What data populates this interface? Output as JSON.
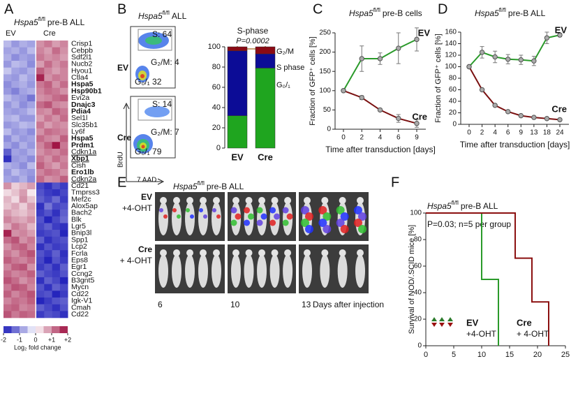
{
  "panel_labels": [
    "A",
    "B",
    "C",
    "D",
    "E",
    "F"
  ],
  "chart_data": [
    {
      "type": "heatmap",
      "title": {
        "gene": "Hspa5",
        "sup": "fl/fl",
        "rest": "pre-B ALL"
      },
      "column_groups": [
        "EV",
        "Cre"
      ],
      "genes": [
        {
          "name": "Crisp1"
        },
        {
          "name": "Cebpb"
        },
        {
          "name": "Sdf2l1"
        },
        {
          "name": "Nucb2"
        },
        {
          "name": "Hyou1"
        },
        {
          "name": "Ctla4"
        },
        {
          "name": "Hspa5",
          "color": "#b01515",
          "bold": true
        },
        {
          "name": "Hsp90b1",
          "color": "#b01515",
          "bold": true
        },
        {
          "name": "Evi2a"
        },
        {
          "name": "Dnajc3",
          "color": "#b01515",
          "bold": true
        },
        {
          "name": "Pdia4",
          "color": "#b01515",
          "bold": true
        },
        {
          "name": "Sel1l"
        },
        {
          "name": "Slc35b1"
        },
        {
          "name": "Ly6f"
        },
        {
          "name": "Hspa5",
          "color": "#b01515",
          "bold": true
        },
        {
          "name": "Prdm1",
          "color": "#b01515",
          "bold": true
        },
        {
          "name": "Cdkn1a",
          "underline": true
        },
        {
          "name": "Xbp1",
          "color": "#b01515",
          "bold": true,
          "underline": true
        },
        {
          "name": "Cish"
        },
        {
          "name": "Ero1lb",
          "color": "#b01515",
          "bold": true
        },
        {
          "name": "Cdkn2a",
          "underline": true
        },
        {
          "name": "Cd21"
        },
        {
          "name": "Tmprss3"
        },
        {
          "name": "Mef2c"
        },
        {
          "name": "Alox5ap"
        },
        {
          "name": "Bach2"
        },
        {
          "name": "Blk"
        },
        {
          "name": "Lgr5"
        },
        {
          "name": "Bnip3l"
        },
        {
          "name": "Spp1"
        },
        {
          "name": "Lcp2"
        },
        {
          "name": "Fcrla"
        },
        {
          "name": "Eps8"
        },
        {
          "name": "Egr1"
        },
        {
          "name": "Ccng2"
        },
        {
          "name": "B3gnt5"
        },
        {
          "name": "Mycn"
        },
        {
          "name": "Cd22"
        },
        {
          "name": "Igk-V1"
        },
        {
          "name": "Cmah"
        },
        {
          "name": "Cd22"
        }
      ],
      "values": [
        [
          -0.6,
          -0.9,
          -0.7,
          -0.8,
          0.9,
          1.1,
          0.8,
          1.0
        ],
        [
          -0.8,
          -0.7,
          -0.9,
          -0.6,
          1.0,
          0.8,
          1.2,
          0.9
        ],
        [
          -0.7,
          -1.0,
          -0.8,
          -0.9,
          1.1,
          0.9,
          1.0,
          0.8
        ],
        [
          -0.9,
          -0.6,
          -0.7,
          -1.0,
          0.8,
          1.2,
          0.9,
          1.1
        ],
        [
          -0.5,
          -0.8,
          -0.9,
          -0.7,
          1.3,
          1.0,
          0.8,
          1.0
        ],
        [
          -0.8,
          -0.9,
          -0.6,
          -0.8,
          1.8,
          0.9,
          1.1,
          1.0
        ],
        [
          -1.0,
          -0.8,
          -0.7,
          -0.9,
          1.1,
          1.3,
          0.9,
          1.2
        ],
        [
          -0.9,
          -1.1,
          -0.8,
          -0.7,
          1.0,
          1.2,
          1.1,
          0.9
        ],
        [
          -0.6,
          -0.8,
          -0.9,
          -1.2,
          0.9,
          1.0,
          1.2,
          1.3
        ],
        [
          -0.9,
          -0.7,
          -1.0,
          -0.8,
          1.2,
          1.4,
          1.0,
          0.9
        ],
        [
          -0.8,
          -0.9,
          -0.8,
          -0.6,
          1.0,
          0.9,
          1.3,
          1.1
        ],
        [
          -0.7,
          -0.6,
          -0.9,
          -0.9,
          0.8,
          1.1,
          0.9,
          1.2
        ],
        [
          -0.9,
          -0.8,
          -0.6,
          -0.7,
          1.1,
          0.8,
          1.0,
          0.9
        ],
        [
          -0.6,
          -0.9,
          -0.8,
          -1.0,
          0.9,
          1.2,
          1.1,
          1.0
        ],
        [
          -1.0,
          -0.7,
          -0.9,
          -0.8,
          1.2,
          1.0,
          0.9,
          1.3
        ],
        [
          -0.8,
          -1.0,
          -0.7,
          -0.9,
          1.0,
          1.3,
          1.9,
          1.1
        ],
        [
          -1.4,
          -0.8,
          -0.9,
          -0.7,
          0.9,
          1.1,
          1.0,
          1.2
        ],
        [
          -1.8,
          -0.9,
          -0.8,
          -1.0,
          1.1,
          0.9,
          1.2,
          1.0
        ],
        [
          -0.7,
          -0.8,
          -1.0,
          -0.6,
          1.3,
          1.0,
          0.8,
          1.1
        ],
        [
          -0.9,
          -0.6,
          -0.8,
          -0.9,
          1.0,
          1.2,
          1.1,
          0.9
        ],
        [
          -0.8,
          -0.9,
          -0.7,
          -1.0,
          1.2,
          0.9,
          1.0,
          1.3
        ],
        [
          0.9,
          0.4,
          0.6,
          0.8,
          -1.6,
          -1.8,
          -1.5,
          -1.7
        ],
        [
          0.3,
          0.5,
          0.8,
          0.2,
          -1.5,
          -1.7,
          -1.8,
          -1.6
        ],
        [
          0.6,
          0.3,
          0.9,
          0.5,
          -1.4,
          -1.6,
          -1.3,
          -1.7
        ],
        [
          0.5,
          0.7,
          0.4,
          0.8,
          -1.8,
          -1.2,
          -1.6,
          -1.5
        ],
        [
          0.8,
          0.6,
          0.5,
          0.7,
          -1.7,
          -1.5,
          -1.8,
          -1.4
        ],
        [
          1.0,
          0.8,
          0.7,
          0.9,
          -1.5,
          -1.9,
          -1.6,
          -1.3
        ],
        [
          0.7,
          1.1,
          0.9,
          0.6,
          -1.6,
          -1.4,
          -1.7,
          -1.8
        ],
        [
          1.8,
          0.9,
          1.0,
          0.8,
          -1.7,
          -1.6,
          -1.5,
          -1.9
        ],
        [
          1.2,
          1.4,
          0.9,
          1.1,
          -1.4,
          -1.8,
          -1.6,
          -1.5
        ],
        [
          0.9,
          1.2,
          1.3,
          1.0,
          -1.8,
          -1.5,
          -1.7,
          -1.6
        ],
        [
          1.1,
          0.9,
          1.2,
          1.4,
          -1.5,
          -1.7,
          -1.4,
          -1.8
        ],
        [
          1.3,
          1.1,
          1.0,
          1.2,
          -1.6,
          -1.9,
          -1.5,
          -1.7
        ],
        [
          1.0,
          1.3,
          1.4,
          0.9,
          -1.7,
          -1.5,
          -1.8,
          -1.4
        ],
        [
          1.2,
          1.0,
          1.1,
          1.3,
          -1.4,
          -1.6,
          -1.7,
          -1.5
        ],
        [
          1.4,
          1.2,
          0.9,
          1.1,
          -1.8,
          -1.4,
          -1.6,
          -1.9
        ],
        [
          1.1,
          1.4,
          1.3,
          1.0,
          -1.5,
          -1.8,
          -1.4,
          -1.6
        ],
        [
          1.3,
          1.0,
          1.2,
          1.4,
          -1.6,
          -1.5,
          -1.9,
          -1.7
        ],
        [
          1.0,
          1.2,
          1.1,
          1.3,
          -1.9,
          -1.7,
          -1.5,
          -1.4
        ],
        [
          1.2,
          1.3,
          1.0,
          1.1,
          -1.4,
          -1.6,
          -1.8,
          -1.5
        ],
        [
          1.4,
          1.1,
          1.3,
          1.2,
          -1.7,
          -1.5,
          -1.6,
          -1.8
        ]
      ],
      "clim": [
        -2,
        2
      ],
      "cticks": [
        -2,
        -1,
        0,
        {
          "value": 1,
          "label": "+1"
        },
        {
          "value": 2,
          "label": "+2"
        }
      ],
      "colorbar_label": "Log₂ fold change",
      "colors": [
        "#1a1ab8",
        "#ffffff",
        "#9c0a3c"
      ]
    },
    {
      "type": "stacked_bar",
      "title": "S-phase",
      "p_value": "P=0.0002",
      "categories": [
        "EV",
        "Cre"
      ],
      "category_colors": [
        "#1a6e1a",
        "#b01515"
      ],
      "series": [
        {
          "name": "G₀/₁",
          "color": "#1fa51f",
          "values": [
            32,
            79
          ]
        },
        {
          "name": "S phase",
          "color": "#0c0c96",
          "values": [
            64,
            14
          ]
        },
        {
          "name": "G₂/M",
          "color": "#8a0a14",
          "values": [
            4,
            7
          ]
        }
      ],
      "ylim": [
        0,
        100
      ],
      "yticks": [
        0,
        20,
        40,
        60,
        80,
        100
      ]
    },
    {
      "type": "line",
      "title": {
        "gene": "Hspa5",
        "sup": "fl/fl",
        "rest": "pre-B cells"
      },
      "xlabel": "Time after transduction [days]",
      "ylabel": "Fraction of GFP⁺ cells [%]",
      "categories": [
        "0",
        "2",
        "4",
        "6",
        "9"
      ],
      "series": [
        {
          "name": "EV",
          "color": "#2a9a2a",
          "values": [
            100,
            183,
            183,
            210,
            233
          ],
          "errors": [
            0,
            33,
            15,
            40,
            30
          ]
        },
        {
          "name": "Cre",
          "color": "#7a1010",
          "values": [
            100,
            82,
            50,
            28,
            15
          ],
          "errors": [
            0,
            5,
            3,
            10,
            10
          ]
        }
      ],
      "ylim": [
        0,
        250
      ],
      "yticks": [
        0,
        50,
        100,
        150,
        200,
        250
      ]
    },
    {
      "type": "line",
      "title": {
        "gene": "Hspa5",
        "sup": "fl/fl",
        "rest": "pre-B ALL"
      },
      "xlabel": "Time after transduction [days]",
      "ylabel": "Fraction of GFP⁺ cells [%]",
      "categories": [
        "0",
        "2",
        "4",
        "6",
        "9",
        "13",
        "18",
        "24"
      ],
      "series": [
        {
          "name": "EV",
          "color": "#2a9a2a",
          "values": [
            100,
            125,
            117,
            113,
            112,
            110,
            150,
            155
          ],
          "errors": [
            0,
            10,
            10,
            8,
            8,
            8,
            10,
            3
          ]
        },
        {
          "name": "Cre",
          "color": "#7a1010",
          "values": [
            100,
            60,
            33,
            22,
            15,
            12,
            10,
            8
          ],
          "errors": [
            0,
            2,
            2,
            2,
            2,
            2,
            1,
            1
          ]
        }
      ],
      "ylim": [
        0,
        160
      ],
      "yticks": [
        0,
        20,
        40,
        60,
        80,
        100,
        120,
        140,
        160
      ]
    },
    {
      "type": "step",
      "title": {
        "gene": "Hspa5",
        "sup": "fl/fl",
        "rest": "pre-B ALL"
      },
      "subtitle": "P=0.03; n=5 per group",
      "ylabel": "Survival of NOD/.SCID mice [%]",
      "series": [
        {
          "name": "EV",
          "treatment": "+4-OHT",
          "color": "#2a9a2a",
          "x": [
            0,
            10,
            13
          ],
          "values": [
            100,
            50,
            0
          ]
        },
        {
          "name": "Cre",
          "treatment": "+ 4-OHT",
          "color": "#8b1010",
          "x": [
            0,
            16,
            19,
            22
          ],
          "values": [
            100,
            66,
            33,
            0
          ]
        }
      ],
      "xlim": [
        0,
        25
      ],
      "xticks": [
        0,
        5,
        10,
        15,
        20,
        25
      ],
      "ylim": [
        0,
        100
      ],
      "yticks": [
        0,
        20,
        40,
        60,
        80,
        100
      ]
    }
  ],
  "flow": {
    "title": {
      "gene": "Hspa5",
      "sup": "fl/fl",
      "rest": "ALL"
    },
    "plots": [
      {
        "condition": "EV",
        "s": "S: 64",
        "g2m": "G₂/M: 4",
        "g01": "G₀/₁ 32"
      },
      {
        "condition": "Cre",
        "s": "S: 14",
        "g2m": "G₂/M: 7",
        "g01": "G₀/₁ 79"
      }
    ],
    "ylabel": "BrdU",
    "xlabel": "7 AAD"
  },
  "imaging": {
    "title": {
      "gene": "Hspa5",
      "sup": "fl/fl",
      "rest": "pre-B ALL"
    },
    "rows": [
      {
        "condition": "EV",
        "treatment": "+4-OHT"
      },
      {
        "condition": "Cre",
        "treatment": "+ 4-OHT"
      }
    ],
    "days": [
      "6",
      "10",
      "13"
    ],
    "days_label": "Days after injection"
  }
}
